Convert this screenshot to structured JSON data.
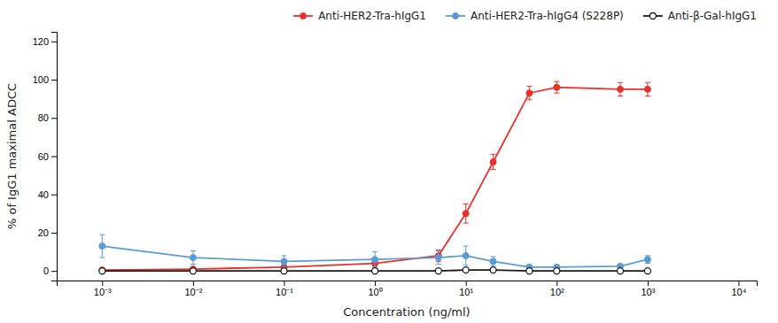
{
  "chart_data": {
    "type": "line",
    "xlabel": "Concentration (ng/ml)",
    "ylabel": "% of IgG1 maximal ADCC",
    "log": "x",
    "xlim": [
      0.00031622776601683794,
      15848.93192461114
    ],
    "xticks": [
      {
        "value": 0.001,
        "label": "10⁻³"
      },
      {
        "value": 0.01,
        "label": "10⁻²"
      },
      {
        "value": 0.1,
        "label": "10⁻¹"
      },
      {
        "value": 1,
        "label": "10⁰"
      },
      {
        "value": 10,
        "label": "10¹"
      },
      {
        "value": 100,
        "label": "10²"
      },
      {
        "value": 1000,
        "label": "10³"
      },
      {
        "value": 10000,
        "label": "10⁴"
      }
    ],
    "ylim": [
      -5,
      125
    ],
    "yticks": [
      0,
      20,
      40,
      60,
      80,
      100,
      120
    ],
    "grid": false,
    "legend": "upper right",
    "series": [
      {
        "name": "Anti-HER2-Tra-hIgG1",
        "color": "#e8312a",
        "marker": "circle",
        "line_style": "solid",
        "x": [
          0.001,
          0.01,
          0.1,
          1.0,
          5.0,
          10.0,
          20.0,
          50.0,
          100.0,
          500.0,
          1000.0
        ],
        "values": [
          0.5,
          1.0,
          2.0,
          4.0,
          8.0,
          30.0,
          57.0,
          93.0,
          96.0,
          95.0,
          95.0
        ],
        "errors": [
          0.5,
          0.5,
          1.0,
          2.0,
          3.0,
          5.0,
          4.0,
          3.5,
          3.0,
          3.5,
          3.5
        ]
      },
      {
        "name": "Anti-HER2-Tra-hIgG4 (S228P)",
        "color": "#5b9bd5",
        "marker": "circle",
        "line_style": "solid",
        "x": [
          0.001,
          0.01,
          0.1,
          1.0,
          5.0,
          10.0,
          20.0,
          50.0,
          100.0,
          500.0,
          1000.0
        ],
        "values": [
          13.0,
          7.0,
          5.0,
          6.0,
          7.0,
          8.0,
          5.0,
          2.0,
          2.0,
          2.5,
          6.0
        ],
        "errors": [
          6.0,
          3.5,
          3.0,
          4.0,
          3.5,
          5.0,
          2.5,
          1.0,
          1.0,
          1.0,
          2.0
        ]
      },
      {
        "name": "Anti-β-Gal-hIgG1",
        "color": "#1a1a1a",
        "marker": "open-circle",
        "line_style": "solid",
        "x": [
          0.001,
          0.01,
          0.1,
          1.0,
          5.0,
          10.0,
          20.0,
          50.0,
          100.0,
          500.0,
          1000.0
        ],
        "values": [
          0.0,
          0.0,
          0.0,
          0.0,
          0.0,
          0.5,
          0.5,
          0.0,
          0.0,
          0.0,
          0.0
        ],
        "errors": [
          0.2,
          0.2,
          0.2,
          0.2,
          0.2,
          0.3,
          0.3,
          0.2,
          0.2,
          0.2,
          0.2
        ]
      }
    ]
  }
}
